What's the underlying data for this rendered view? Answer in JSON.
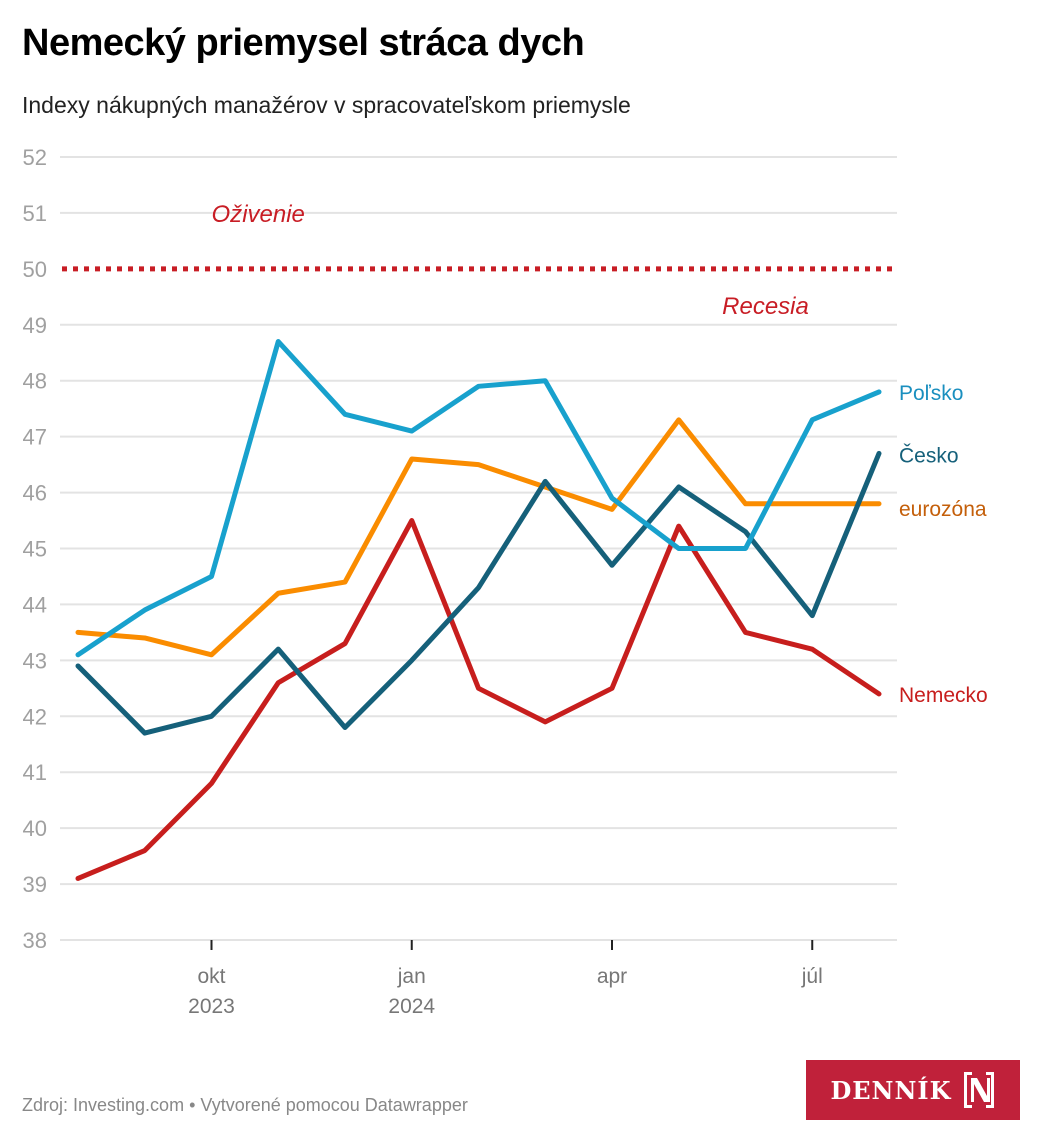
{
  "header": {
    "title": "Nemecký priemysel stráca dych",
    "subtitle": "Indexy nákupných manažérov v spracovateľskom priemysle"
  },
  "footer": {
    "source": "Zdroj: Investing.com • Vytvorené pomocou Datawrapper",
    "logo_text": "DENNÍK",
    "logo_icon": "n-logo-icon",
    "logo_color": "#c0213a"
  },
  "chart_data": {
    "type": "line",
    "title": "Nemecký priemysel stráca dych",
    "subtitle": "Indexy nákupných manažérov v spracovateľskom priemysle",
    "xlabel": "",
    "ylabel": "",
    "ylim": [
      38,
      52
    ],
    "yticks": [
      "38",
      "39",
      "40",
      "41",
      "42",
      "43",
      "44",
      "45",
      "46",
      "47",
      "48",
      "49",
      "50",
      "51",
      "52"
    ],
    "grid": true,
    "x": [
      "2023-08",
      "2023-09",
      "2023-10",
      "2023-11",
      "2023-12",
      "2024-01",
      "2024-02",
      "2024-03",
      "2024-04",
      "2024-05",
      "2024-06",
      "2024-07",
      "2024-08"
    ],
    "xticks": [
      {
        "index": 2,
        "line1": "okt",
        "line2": "2023"
      },
      {
        "index": 5,
        "line1": "jan",
        "line2": "2024"
      },
      {
        "index": 8,
        "line1": "apr",
        "line2": ""
      },
      {
        "index": 11,
        "line1": "júl",
        "line2": ""
      }
    ],
    "reference_line": {
      "value": 50,
      "style": "dotted",
      "color": "#c81d25"
    },
    "annotations": [
      {
        "text": "Oživenie",
        "x_index": 2.7,
        "y": 51.0,
        "color": "#c81d25"
      },
      {
        "text": "Recesia",
        "x_index": 10.3,
        "y": 49.35,
        "color": "#c81d25"
      }
    ],
    "series": [
      {
        "name": "Poľsko",
        "color": "#18a1cd",
        "label_color": "#1a8fbf",
        "values": [
          43.1,
          43.9,
          44.5,
          48.7,
          47.4,
          47.1,
          47.9,
          48.0,
          45.9,
          45.0,
          45.0,
          47.3,
          47.8
        ]
      },
      {
        "name": "Česko",
        "color": "#15607a",
        "label_color": "#15607a",
        "values": [
          42.9,
          41.7,
          42.0,
          43.2,
          41.8,
          43.0,
          44.3,
          46.2,
          44.7,
          46.1,
          45.3,
          43.8,
          46.7
        ]
      },
      {
        "name": "eurozóna",
        "color": "#fa8c00",
        "label_color": "#c45f0a",
        "values": [
          43.5,
          43.4,
          43.1,
          44.2,
          44.4,
          46.6,
          46.5,
          46.1,
          45.7,
          47.3,
          45.8,
          45.8,
          45.8
        ]
      },
      {
        "name": "Nemecko",
        "color": "#c71e1d",
        "label_color": "#c71e1d",
        "values": [
          39.1,
          39.6,
          40.8,
          42.6,
          43.3,
          45.5,
          42.5,
          41.9,
          42.5,
          45.4,
          43.5,
          43.2,
          42.4
        ]
      }
    ]
  }
}
